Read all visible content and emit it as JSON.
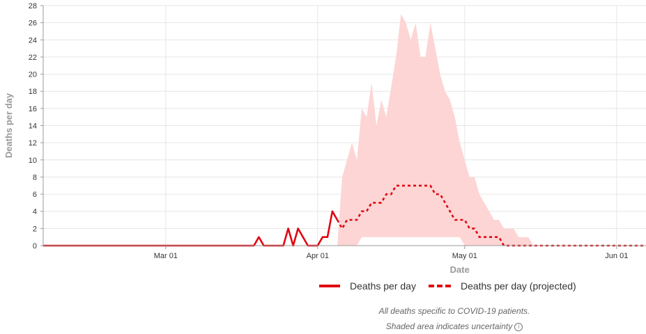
{
  "chart_data": {
    "type": "line",
    "xlabel": "Date",
    "ylabel": "Deaths per day",
    "ylim": [
      0,
      28
    ],
    "yticks": [
      0,
      2,
      4,
      6,
      8,
      10,
      12,
      14,
      16,
      18,
      20,
      22,
      24,
      26,
      28
    ],
    "xlim": [
      "2020-02-05",
      "2020-06-07"
    ],
    "xticks": [
      {
        "date": "2020-03-01",
        "label": "Mar 01"
      },
      {
        "date": "2020-04-01",
        "label": "Apr 01"
      },
      {
        "date": "2020-05-01",
        "label": "May 01"
      },
      {
        "date": "2020-06-01",
        "label": "Jun 01"
      }
    ],
    "grid": true,
    "legend_position": "bottom",
    "series": [
      {
        "name": "Deaths per day",
        "style": "solid",
        "color": "#e0080f",
        "points": [
          [
            "2020-02-05",
            0
          ],
          [
            "2020-03-19",
            0
          ],
          [
            "2020-03-20",
            1
          ],
          [
            "2020-03-21",
            0
          ],
          [
            "2020-03-25",
            0
          ],
          [
            "2020-03-26",
            2
          ],
          [
            "2020-03-27",
            0
          ],
          [
            "2020-03-28",
            2
          ],
          [
            "2020-03-30",
            0
          ],
          [
            "2020-04-01",
            0
          ],
          [
            "2020-04-02",
            1
          ],
          [
            "2020-04-03",
            1
          ],
          [
            "2020-04-04",
            4
          ],
          [
            "2020-04-05",
            3
          ]
        ]
      },
      {
        "name": "Deaths per day (projected)",
        "style": "dashed",
        "color": "#e0080f",
        "points": [
          [
            "2020-04-05",
            3
          ],
          [
            "2020-04-06",
            2
          ],
          [
            "2020-04-07",
            3
          ],
          [
            "2020-04-09",
            3
          ],
          [
            "2020-04-10",
            4
          ],
          [
            "2020-04-11",
            4
          ],
          [
            "2020-04-12",
            5
          ],
          [
            "2020-04-14",
            5
          ],
          [
            "2020-04-15",
            6
          ],
          [
            "2020-04-16",
            6
          ],
          [
            "2020-04-17",
            7
          ],
          [
            "2020-04-24",
            7
          ],
          [
            "2020-04-25",
            6
          ],
          [
            "2020-04-26",
            6
          ],
          [
            "2020-04-27",
            5
          ],
          [
            "2020-04-28",
            4
          ],
          [
            "2020-04-29",
            3
          ],
          [
            "2020-05-01",
            3
          ],
          [
            "2020-05-02",
            2
          ],
          [
            "2020-05-03",
            2
          ],
          [
            "2020-05-04",
            1
          ],
          [
            "2020-05-08",
            1
          ],
          [
            "2020-05-09",
            0
          ],
          [
            "2020-06-07",
            0
          ]
        ]
      }
    ],
    "uncertainty_band": {
      "color": "#fdd5d5",
      "upper": [
        [
          "2020-04-05",
          0
        ],
        [
          "2020-04-06",
          8
        ],
        [
          "2020-04-08",
          12
        ],
        [
          "2020-04-09",
          10
        ],
        [
          "2020-04-10",
          16
        ],
        [
          "2020-04-11",
          15
        ],
        [
          "2020-04-12",
          19
        ],
        [
          "2020-04-13",
          14
        ],
        [
          "2020-04-14",
          17
        ],
        [
          "2020-04-15",
          15
        ],
        [
          "2020-04-17",
          22
        ],
        [
          "2020-04-18",
          27
        ],
        [
          "2020-04-19",
          26
        ],
        [
          "2020-04-20",
          24
        ],
        [
          "2020-04-21",
          26
        ],
        [
          "2020-04-22",
          22
        ],
        [
          "2020-04-23",
          22
        ],
        [
          "2020-04-24",
          26
        ],
        [
          "2020-04-26",
          20
        ],
        [
          "2020-04-27",
          18
        ],
        [
          "2020-04-28",
          17
        ],
        [
          "2020-04-29",
          15
        ],
        [
          "2020-04-30",
          12
        ],
        [
          "2020-05-01",
          10
        ],
        [
          "2020-05-02",
          8
        ],
        [
          "2020-05-03",
          8
        ],
        [
          "2020-05-04",
          6
        ],
        [
          "2020-05-05",
          5
        ],
        [
          "2020-05-06",
          4
        ],
        [
          "2020-05-07",
          3
        ],
        [
          "2020-05-08",
          3
        ],
        [
          "2020-05-09",
          2
        ],
        [
          "2020-05-11",
          2
        ],
        [
          "2020-05-12",
          1
        ],
        [
          "2020-05-14",
          1
        ],
        [
          "2020-05-15",
          0
        ]
      ],
      "lower": [
        [
          "2020-04-05",
          0
        ],
        [
          "2020-04-09",
          0
        ],
        [
          "2020-04-10",
          1
        ],
        [
          "2020-04-30",
          1
        ],
        [
          "2020-05-01",
          0
        ],
        [
          "2020-05-15",
          0
        ]
      ]
    },
    "notes": [
      "All deaths specific to COVID-19 patients.",
      "Shaded area indicates uncertainty"
    ]
  }
}
